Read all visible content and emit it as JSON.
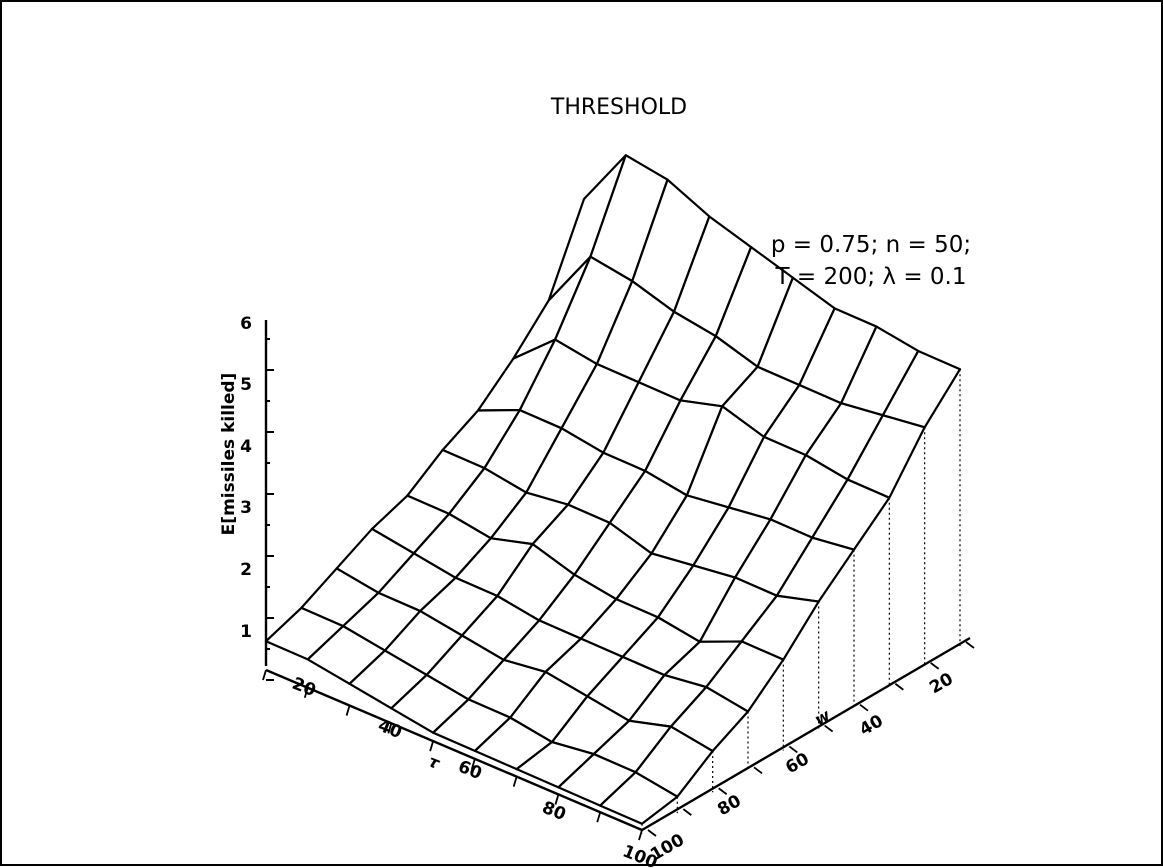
{
  "chart_data": {
    "type": "surface",
    "title": "THRESHOLD",
    "annotation_lines": [
      "p = 0.75; n = 50;",
      "T = 200; λ = 0.1"
    ],
    "ylabel": "E[missiles killed]",
    "xlabel": "τ",
    "zlabel": "w",
    "y_ticks": [
      "1",
      "2",
      "3",
      "4",
      "5",
      "6"
    ],
    "x_ticks": [
      "20",
      "40",
      "60",
      "80",
      "100"
    ],
    "w_ticks": [
      "20",
      "40",
      "60",
      "80",
      "100"
    ],
    "tau": [
      10,
      20,
      30,
      40,
      50,
      60,
      70,
      80,
      90,
      100
    ],
    "w": [
      10,
      20,
      30,
      40,
      50,
      60,
      70,
      80,
      90,
      100
    ],
    "w_rows_front_to_back": [
      100,
      90,
      80,
      70,
      60,
      50,
      40,
      30,
      20,
      10
    ],
    "values_rows_front_to_back": [
      [
        0.4,
        0.4,
        0.3,
        0.2,
        0.1,
        0.1,
        0.1,
        0.1,
        0.1,
        0.1
      ],
      [
        0.6,
        0.6,
        0.5,
        0.4,
        0.3,
        0.3,
        0.2,
        0.3,
        0.3,
        0.2
      ],
      [
        0.9,
        0.8,
        0.8,
        0.7,
        0.6,
        0.7,
        0.6,
        0.5,
        0.7,
        0.6
      ],
      [
        1.2,
        1.1,
        1.0,
        1.0,
        0.9,
        0.9,
        0.9,
        0.9,
        1.0,
        0.9
      ],
      [
        1.4,
        1.4,
        1.3,
        1.5,
        1.3,
        1.2,
        1.2,
        1.1,
        1.4,
        1.4
      ],
      [
        1.8,
        1.8,
        1.7,
        1.8,
        1.8,
        1.6,
        1.7,
        1.8,
        1.8,
        2.0
      ],
      [
        2.1,
        2.4,
        2.4,
        2.3,
        2.3,
        2.2,
        2.3,
        2.4,
        2.4,
        2.5
      ],
      [
        2.6,
        3.2,
        3.1,
        3.1,
        3.1,
        3.3,
        3.1,
        3.1,
        3.0,
        3.0
      ],
      [
        3.2,
        4.2,
        4.1,
        3.9,
        3.8,
        3.6,
        3.6,
        3.6,
        3.7,
        3.8
      ],
      [
        4.5,
        5.5,
        5.4,
        5.1,
        4.9,
        4.7,
        4.5,
        4.5,
        4.4,
        4.4
      ]
    ]
  }
}
